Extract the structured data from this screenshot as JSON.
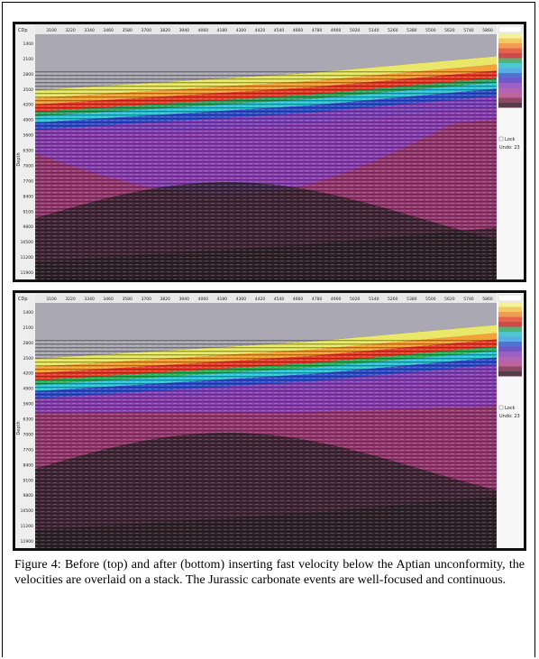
{
  "figure": {
    "panels": [
      {
        "cdp_header": "CDp",
        "cdp_labels": [
          "3100",
          "3220",
          "3340",
          "3460",
          "3580",
          "3700",
          "3820",
          "3940",
          "4060",
          "4180",
          "4300",
          "4420",
          "4540",
          "4660",
          "4780",
          "4900",
          "5020",
          "5140",
          "5260",
          "5380",
          "5500",
          "5620",
          "5740",
          "5860"
        ],
        "depth_axis_label": "Depth",
        "depth_labels": [
          "1400",
          "2100",
          "2800",
          "3500",
          "4200",
          "4900",
          "5600",
          "6300",
          "7000",
          "7700",
          "8400",
          "9100",
          "9800",
          "10500",
          "11200",
          "11900"
        ],
        "lock": "Lock",
        "undo": "Undo: 23"
      },
      {
        "cdp_header": "CDp",
        "cdp_labels": [
          "3100",
          "3220",
          "3340",
          "3460",
          "3580",
          "3700",
          "3820",
          "3940",
          "4060",
          "4180",
          "4300",
          "4420",
          "4540",
          "4660",
          "4780",
          "4900",
          "5020",
          "5140",
          "5260",
          "5380",
          "5500",
          "5620",
          "5740",
          "5860"
        ],
        "depth_axis_label": "Depth",
        "depth_labels": [
          "1400",
          "2100",
          "2800",
          "3500",
          "4200",
          "4900",
          "5600",
          "6300",
          "7000",
          "7700",
          "8400",
          "9100",
          "9800",
          "10500",
          "11200",
          "11900"
        ],
        "lock": "Lock",
        "undo": "Undo: 23"
      }
    ],
    "caption": "Figure 4: Before (top) and after (bottom) inserting fast velocity below the Aptian unconformity, the velocities are overlaid on a stack. The Jurassic carbonate events are well-focused and continuous."
  }
}
